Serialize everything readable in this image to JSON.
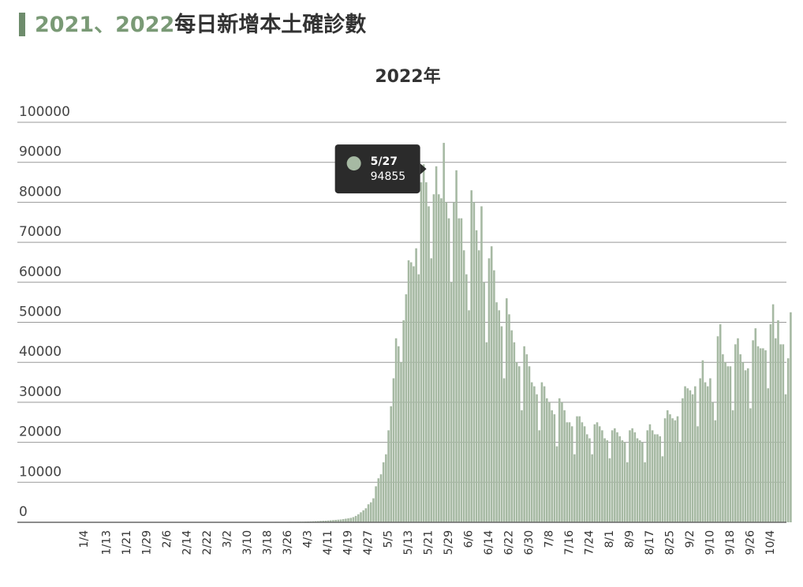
{
  "heading": {
    "accent": "2021、2022",
    "text": "每日新增本土確診數"
  },
  "chart_data": {
    "type": "bar",
    "title": "2022年",
    "color": "#a6b9a3",
    "grid": true,
    "ylim": [
      0,
      100000
    ],
    "yticks": [
      0,
      10000,
      20000,
      30000,
      40000,
      50000,
      60000,
      70000,
      80000,
      90000,
      100000
    ],
    "tooltip": {
      "category": "5/27",
      "value": 94855
    },
    "categories": [
      null,
      null,
      null,
      "1/4",
      null,
      null,
      null,
      null,
      null,
      null,
      null,
      null,
      "1/13",
      null,
      null,
      null,
      null,
      null,
      null,
      null,
      "1/21",
      null,
      null,
      null,
      null,
      null,
      null,
      null,
      "1/29",
      null,
      null,
      null,
      null,
      null,
      null,
      null,
      "2/6",
      null,
      null,
      null,
      null,
      null,
      null,
      null,
      "2/14",
      null,
      null,
      null,
      null,
      null,
      null,
      null,
      "2/22",
      null,
      null,
      null,
      null,
      null,
      null,
      null,
      "3/2",
      null,
      null,
      null,
      null,
      null,
      null,
      null,
      "3/10",
      null,
      null,
      null,
      null,
      null,
      null,
      null,
      "3/18",
      null,
      null,
      null,
      null,
      null,
      null,
      null,
      "3/26",
      null,
      null,
      null,
      null,
      null,
      null,
      null,
      "4/3",
      null,
      null,
      null,
      null,
      null,
      null,
      null,
      "4/11",
      null,
      null,
      null,
      null,
      null,
      null,
      null,
      "4/19",
      null,
      null,
      null,
      null,
      null,
      null,
      null,
      "4/27",
      null,
      null,
      null,
      null,
      null,
      null,
      null,
      "5/5",
      null,
      null,
      null,
      null,
      null,
      null,
      null,
      "5/13",
      null,
      null,
      null,
      null,
      null,
      null,
      null,
      "5/21",
      null,
      null,
      null,
      null,
      null,
      null,
      null,
      "5/29",
      null,
      null,
      null,
      null,
      null,
      null,
      null,
      "6/6",
      null,
      null,
      null,
      null,
      null,
      null,
      null,
      "6/14",
      null,
      null,
      null,
      null,
      null,
      null,
      null,
      "6/22",
      null,
      null,
      null,
      null,
      null,
      null,
      null,
      "6/30",
      null,
      null,
      null,
      null,
      null,
      null,
      null,
      "7/8",
      null,
      null,
      null,
      null,
      null,
      null,
      null,
      "7/16",
      null,
      null,
      null,
      null,
      null,
      null,
      null,
      "7/24",
      null,
      null,
      null,
      null,
      null,
      null,
      null,
      "8/1",
      null,
      null,
      null,
      null,
      null,
      null,
      null,
      "8/9",
      null,
      null,
      null,
      null,
      null,
      null,
      null,
      "8/17",
      null,
      null,
      null,
      null,
      null,
      null,
      null,
      "8/25",
      null,
      null,
      null,
      null,
      null,
      null,
      null,
      "9/2",
      null,
      null,
      null,
      null,
      null,
      null,
      null,
      "9/10",
      null,
      null,
      null,
      null,
      null,
      null,
      null,
      "9/18",
      null,
      null,
      null,
      null,
      null,
      null,
      null,
      "9/26",
      null,
      null,
      null,
      null,
      null,
      null,
      null,
      "10/4",
      null,
      null,
      null,
      null,
      null,
      null,
      null,
      null
    ],
    "values": [
      0,
      1,
      3,
      6,
      8,
      10,
      20,
      30,
      20,
      25,
      28,
      40,
      35,
      30,
      27,
      22,
      20,
      15,
      12,
      10,
      20,
      25,
      20,
      18,
      22,
      28,
      30,
      25,
      20,
      15,
      18,
      20,
      22,
      25,
      18,
      15,
      12,
      20,
      25,
      30,
      28,
      26,
      24,
      22,
      18,
      20,
      25,
      30,
      35,
      40,
      45,
      38,
      35,
      40,
      50,
      55,
      60,
      58,
      50,
      55,
      60,
      70,
      65,
      60,
      55,
      70,
      80,
      90,
      85,
      80,
      75,
      70,
      90,
      100,
      95,
      90,
      85,
      80,
      95,
      110,
      105,
      100,
      95,
      90,
      110,
      130,
      120,
      125,
      140,
      150,
      150,
      180,
      200,
      220,
      250,
      280,
      300,
      350,
      380,
      400,
      450,
      500,
      550,
      600,
      650,
      700,
      800,
      900,
      1000,
      1100,
      1300,
      1600,
      2000,
      2500,
      3000,
      3500,
      4500,
      5000,
      6000,
      9000,
      11000,
      12000,
      15000,
      17000,
      23000,
      29000,
      36000,
      46000,
      44000,
      40000,
      50500,
      57000,
      65500,
      65000,
      64000,
      68500,
      62000,
      85000,
      89500,
      85000,
      79000,
      66000,
      82000,
      89000,
      82000,
      81000,
      94855,
      80000,
      76000,
      60000,
      80000,
      88000,
      76000,
      76000,
      68000,
      62000,
      53000,
      83000,
      80000,
      73000,
      68000,
      79000,
      60000,
      45000,
      66000,
      69000,
      63000,
      55000,
      53000,
      49000,
      36000,
      56000,
      52000,
      48000,
      45000,
      40000,
      39000,
      28000,
      44000,
      42000,
      39000,
      35000,
      34000,
      32000,
      23000,
      35000,
      34000,
      31000,
      30000,
      28000,
      27000,
      19000,
      31000,
      30000,
      28000,
      25000,
      25000,
      24000,
      17000,
      26500,
      26500,
      25000,
      24000,
      22000,
      21000,
      17000,
      24500,
      25000,
      24000,
      23000,
      21000,
      20500,
      16000,
      23000,
      23500,
      22500,
      21500,
      20500,
      20000,
      15000,
      23000,
      23500,
      22500,
      21000,
      20500,
      20000,
      15000,
      23000,
      24500,
      23000,
      22000,
      22000,
      21500,
      16500,
      26000,
      28000,
      27000,
      26000,
      25500,
      26500,
      20000,
      31000,
      34000,
      33500,
      33000,
      32000,
      34000,
      24000,
      36000,
      40500,
      35000,
      34000,
      36000,
      30000,
      25500,
      46500,
      49500,
      42000,
      40000,
      39000,
      39000,
      28000,
      44500,
      46000,
      42000,
      40000,
      38000,
      38500,
      28500,
      45500,
      48500,
      44000,
      43500,
      43500,
      43000,
      33500,
      49500,
      54500,
      46000,
      50500,
      44500,
      44500,
      32000,
      41000,
      52500
    ]
  }
}
